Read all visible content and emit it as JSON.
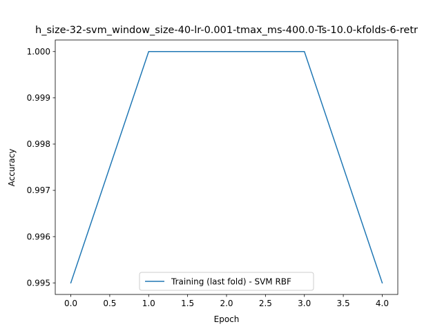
{
  "chart_data": {
    "type": "line",
    "title": "h_size-32-svm_window_size-40-lr-0.001-tmax_ms-400.0-Ts-10.0-kfolds-6-retr",
    "xlabel": "Epoch",
    "ylabel": "Accuracy",
    "xlim": [
      -0.2,
      4.2
    ],
    "ylim": [
      0.99475,
      1.00025
    ],
    "xticks": [
      0.0,
      0.5,
      1.0,
      1.5,
      2.0,
      2.5,
      3.0,
      3.5,
      4.0
    ],
    "xtick_labels": [
      "0.0",
      "0.5",
      "1.0",
      "1.5",
      "2.0",
      "2.5",
      "3.0",
      "3.5",
      "4.0"
    ],
    "yticks": [
      0.995,
      0.996,
      0.997,
      0.998,
      0.999,
      1.0
    ],
    "ytick_labels": [
      "0.995",
      "0.996",
      "0.997",
      "0.998",
      "0.999",
      "1.000"
    ],
    "grid": false,
    "legend_position": "bottom-center",
    "series": [
      {
        "name": "Training (last fold) - SVM RBF",
        "color": "#1f77b4",
        "x": [
          0,
          1,
          2,
          3,
          4
        ],
        "y": [
          0.995,
          1.0,
          1.0,
          1.0,
          0.995
        ]
      }
    ]
  }
}
